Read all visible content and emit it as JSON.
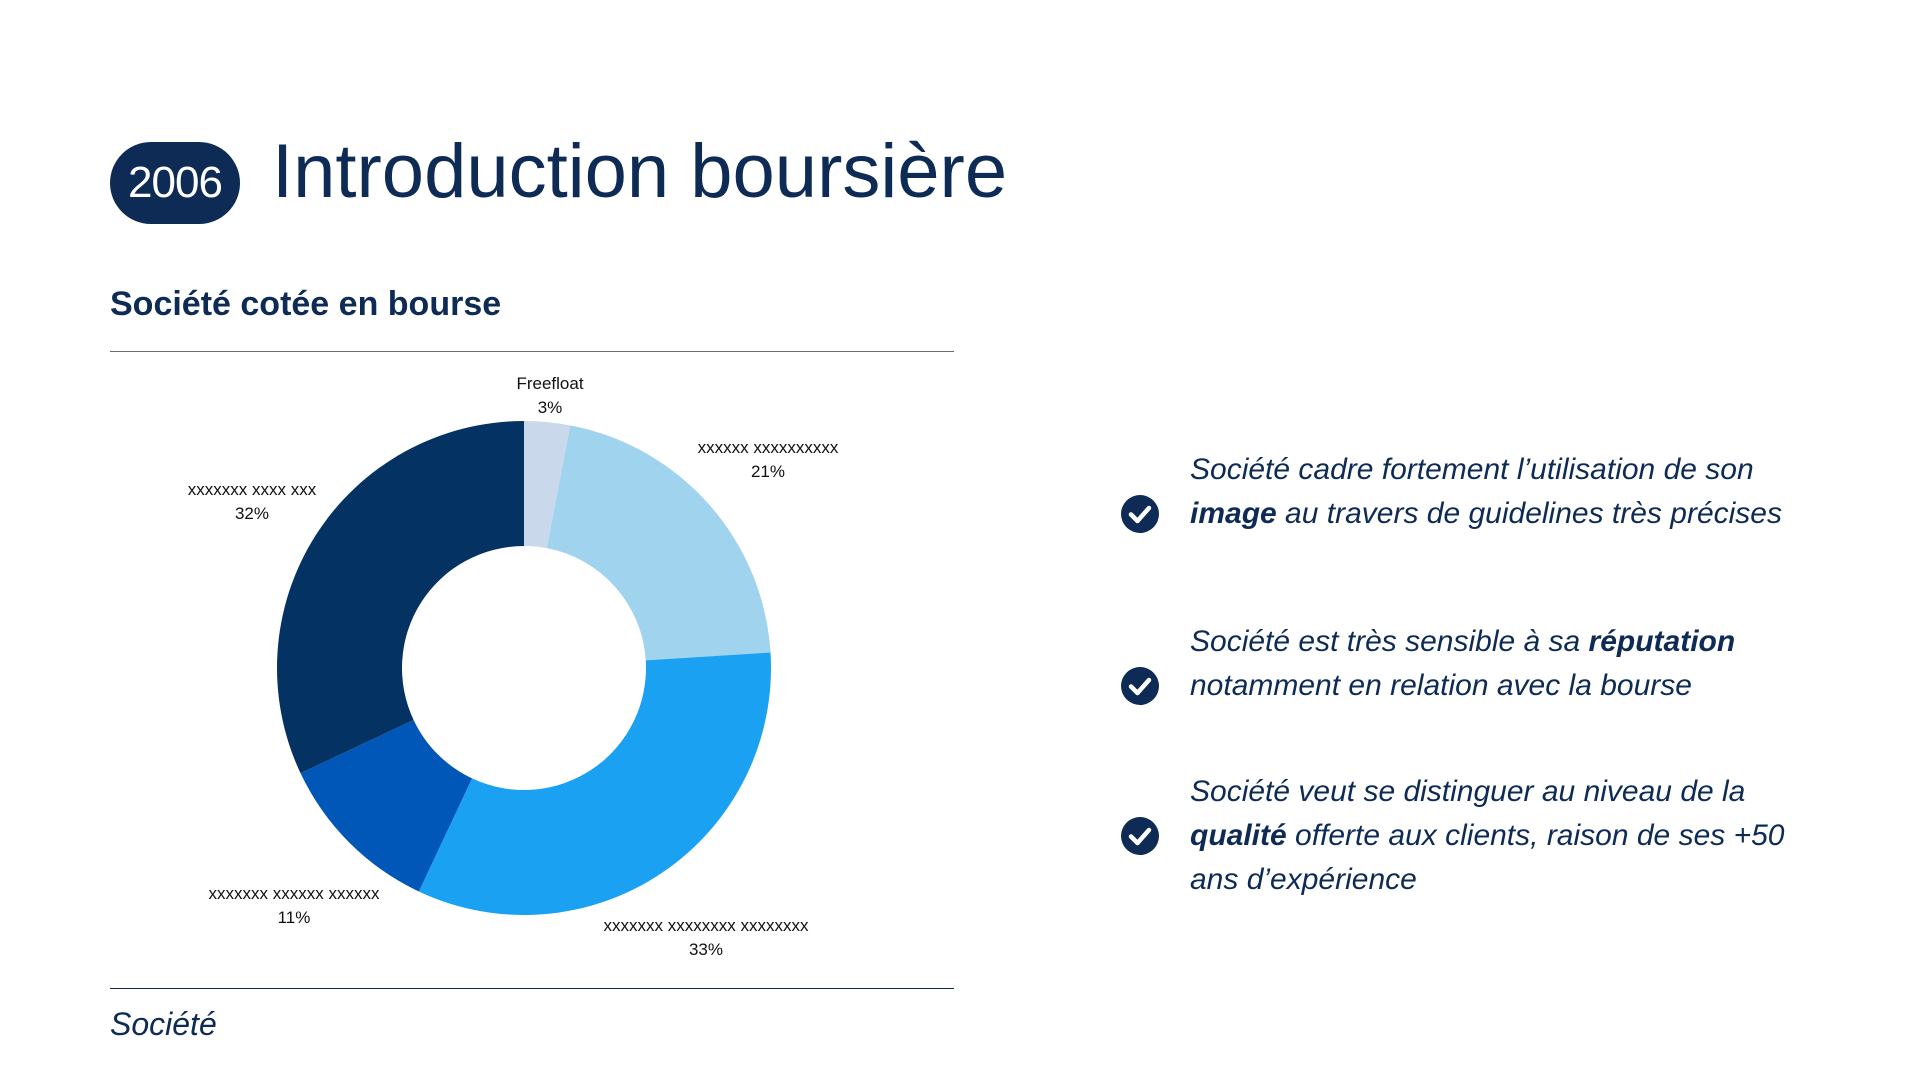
{
  "header": {
    "year": "2006",
    "title": "Introduction boursière"
  },
  "section": {
    "subtitle": "Société cotée en bourse",
    "source": "Société"
  },
  "colors": {
    "navy": "#0d2b55"
  },
  "chart_data": {
    "type": "pie",
    "donut": true,
    "slices": [
      {
        "label": "Freefloat",
        "value": 3,
        "value_label": "3%",
        "color": "#c9d9eb"
      },
      {
        "label": "xxxxxx xxxxxxxxxx",
        "value": 21,
        "value_label": "21%",
        "color": "#a0d3ee"
      },
      {
        "label": "xxxxxxx xxxxxxxx xxxxxxxx",
        "value": 33,
        "value_label": "33%",
        "color": "#1ba1f2"
      },
      {
        "label": "xxxxxxx xxxxxx xxxxxx",
        "value": 11,
        "value_label": "11%",
        "color": "#0057b7"
      },
      {
        "label": "xxxxxxx xxxx xxx",
        "value": 32,
        "value_label": "32%",
        "color": "#043263"
      }
    ]
  },
  "bullets": [
    {
      "icon": "check-circle-icon",
      "before": "Société cadre fortement l’utilisation de son ",
      "strong": "image",
      "after": " au travers de guidelines très précises"
    },
    {
      "icon": "check-circle-icon",
      "before": "Société est très sensible à sa ",
      "strong": "réputation",
      "after": " notamment en relation avec la bourse"
    },
    {
      "icon": "check-circle-icon",
      "before": "Société veut se distinguer au niveau de la ",
      "strong": "qualité",
      "after": " offerte aux clients, raison de ses +50 ans d’expérience"
    }
  ]
}
